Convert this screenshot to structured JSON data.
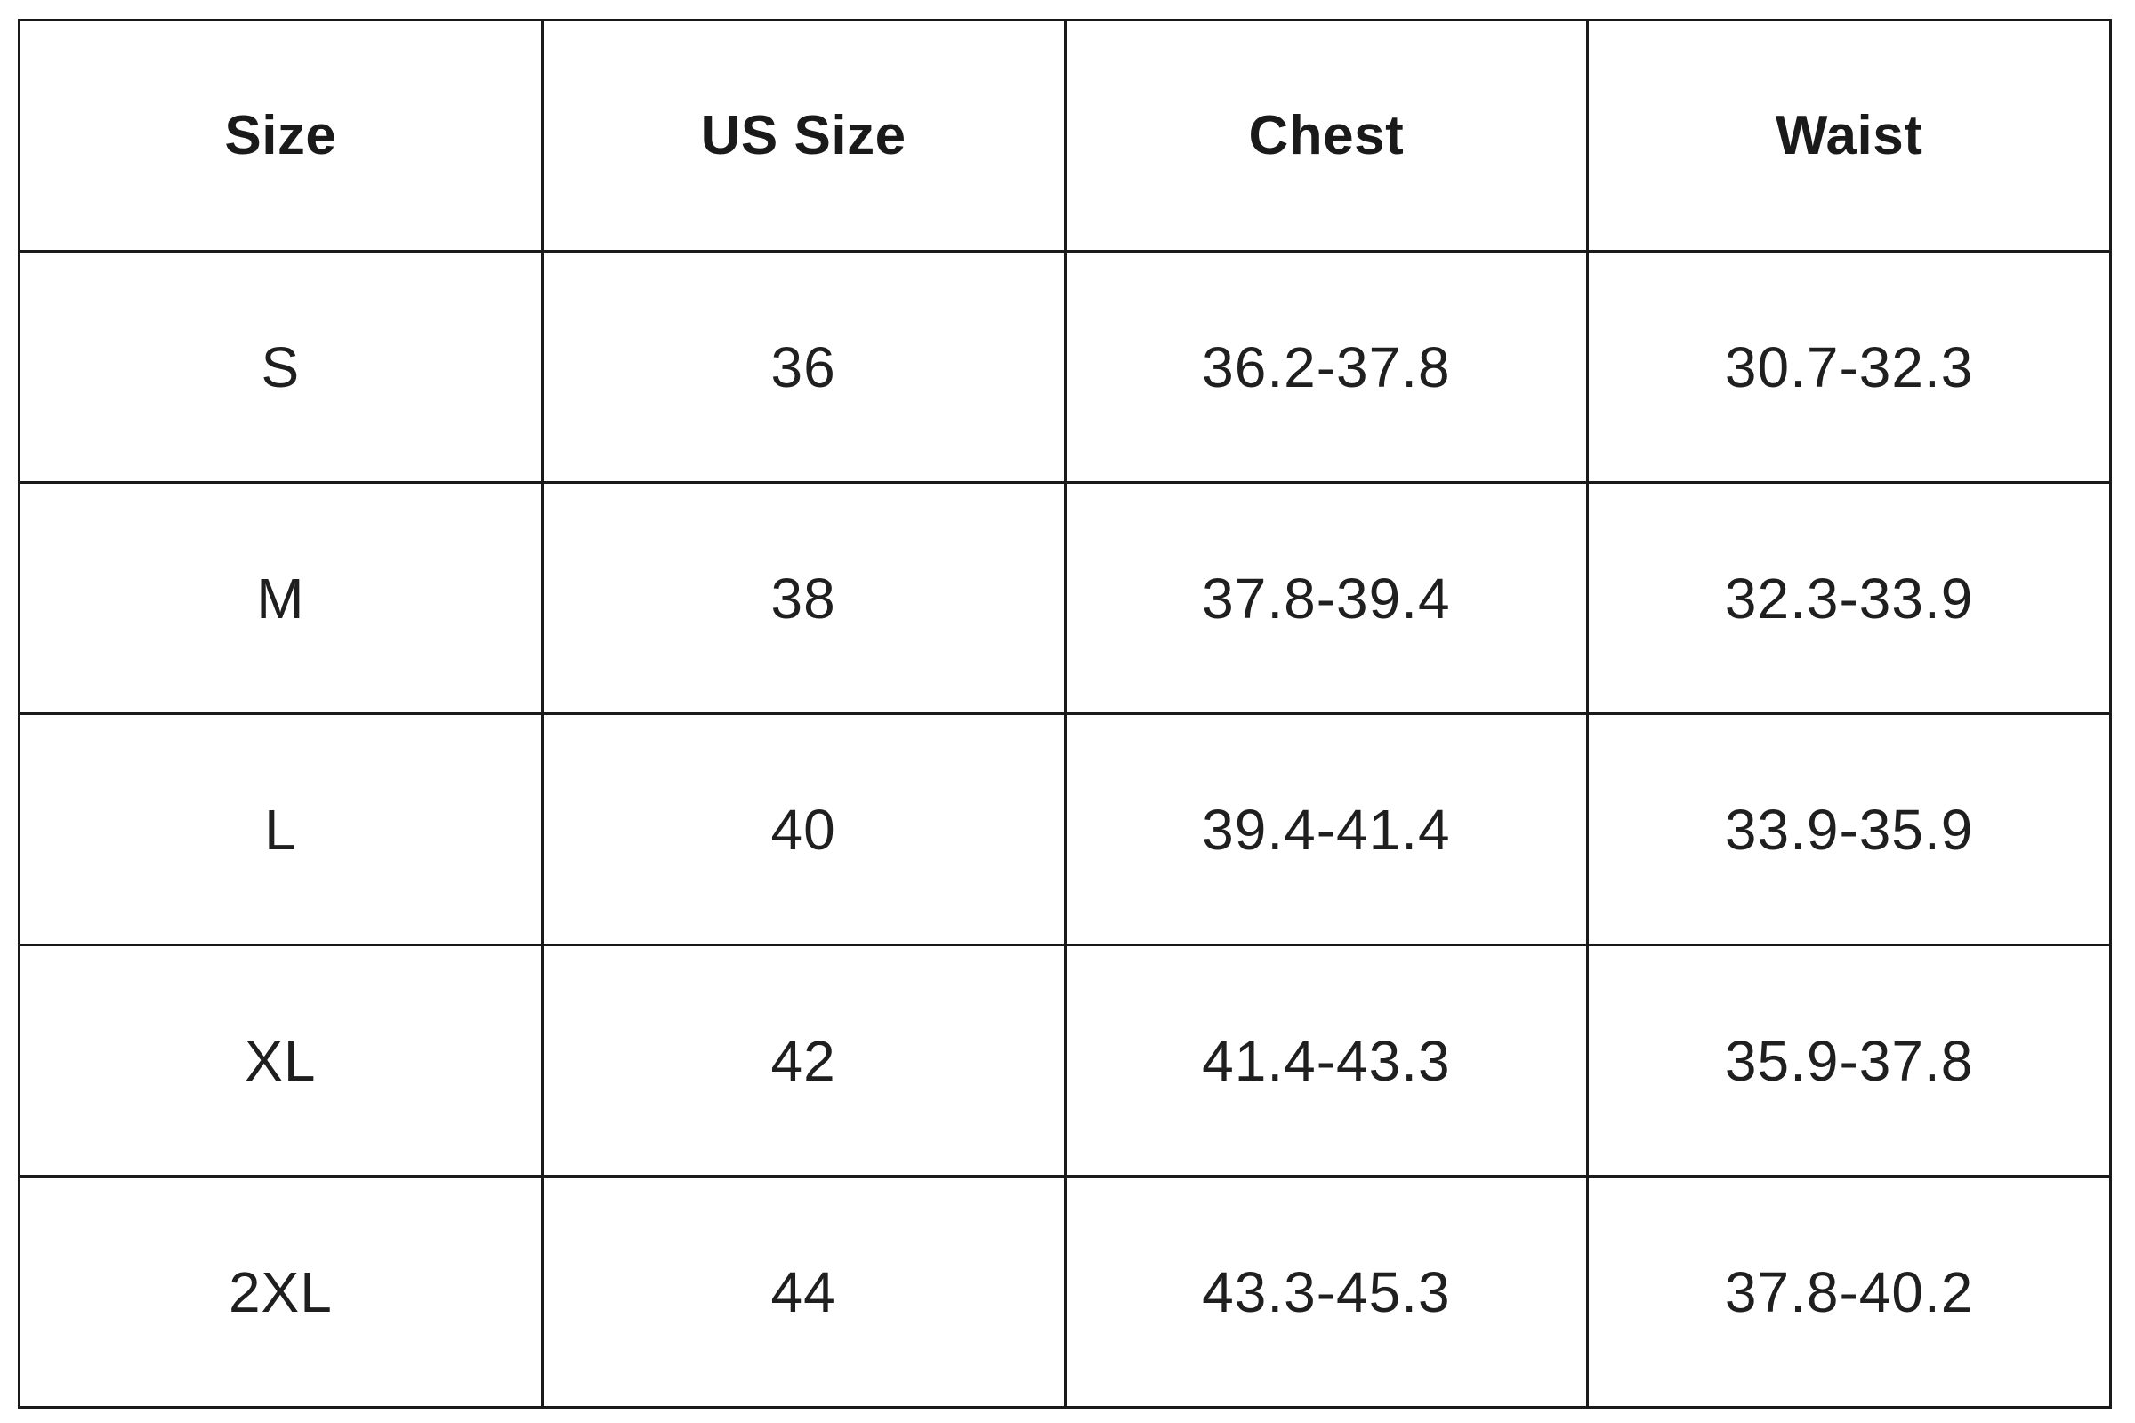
{
  "table": {
    "columns": [
      "Size",
      "US Size",
      "Chest",
      "Waist"
    ],
    "rows": [
      [
        "S",
        "36",
        "36.2-37.8",
        "30.7-32.3"
      ],
      [
        "M",
        "38",
        "37.8-39.4",
        "32.3-33.9"
      ],
      [
        "L",
        "40",
        "39.4-41.4",
        "33.9-35.9"
      ],
      [
        "XL",
        "42",
        "41.4-43.3",
        "35.9-37.8"
      ],
      [
        "2XL",
        "44",
        "43.3-45.3",
        "37.8-40.2"
      ]
    ],
    "colors": {
      "background": "#ffffff",
      "border": "#1a1a1a",
      "header_text": "#1a1a1a",
      "cell_text": "#1f1f1f"
    }
  },
  "chart_data": {
    "type": "table",
    "columns": [
      "Size",
      "US Size",
      "Chest",
      "Waist"
    ],
    "rows": [
      {
        "size": "S",
        "us_size": 36,
        "chest": "36.2-37.8",
        "waist": "30.7-32.3"
      },
      {
        "size": "M",
        "us_size": 38,
        "chest": "37.8-39.4",
        "waist": "32.3-33.9"
      },
      {
        "size": "L",
        "us_size": 40,
        "chest": "39.4-41.4",
        "waist": "33.9-35.9"
      },
      {
        "size": "XL",
        "us_size": 42,
        "chest": "41.4-43.3",
        "waist": "35.9-37.8"
      },
      {
        "size": "2XL",
        "us_size": 44,
        "chest": "43.3-45.3",
        "waist": "37.8-40.2"
      }
    ],
    "layout": {
      "grid": true,
      "header_row_bold": true,
      "columns_equal_width": true
    }
  }
}
